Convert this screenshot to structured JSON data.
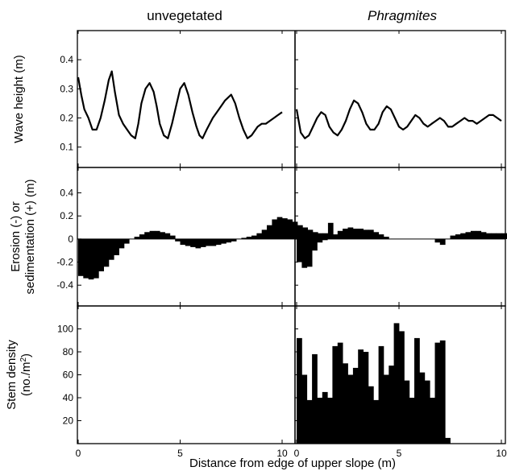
{
  "figure": {
    "col_titles": [
      "unvegetated",
      "Phragmites"
    ],
    "xlabel": "Distance from edge of upper slope (m)"
  },
  "chart_data": [
    {
      "type": "line",
      "panel": "wave-height",
      "ylabel": "Wave height (m)",
      "ylim": [
        0.03,
        0.5
      ],
      "yticks": [
        0.1,
        0.2,
        0.3,
        0.4
      ],
      "xlim": [
        0,
        10
      ],
      "xticks": [
        0,
        5,
        10
      ],
      "series": [
        {
          "column": "unvegetated",
          "x": [
            0,
            0.15,
            0.3,
            0.5,
            0.7,
            0.9,
            1.1,
            1.3,
            1.5,
            1.65,
            1.8,
            2.0,
            2.2,
            2.4,
            2.6,
            2.8,
            2.95,
            3.1,
            3.3,
            3.5,
            3.7,
            3.85,
            4.0,
            4.2,
            4.4,
            4.6,
            4.8,
            5.0,
            5.2,
            5.4,
            5.6,
            5.8,
            5.95,
            6.1,
            6.3,
            6.6,
            6.9,
            7.2,
            7.5,
            7.7,
            7.9,
            8.1,
            8.3,
            8.5,
            8.8,
            9.0,
            9.2,
            9.4,
            9.6,
            9.8,
            10.0
          ],
          "y": [
            0.34,
            0.28,
            0.23,
            0.2,
            0.16,
            0.16,
            0.2,
            0.26,
            0.33,
            0.36,
            0.29,
            0.21,
            0.18,
            0.16,
            0.14,
            0.13,
            0.18,
            0.25,
            0.3,
            0.32,
            0.29,
            0.24,
            0.18,
            0.14,
            0.13,
            0.18,
            0.24,
            0.3,
            0.32,
            0.28,
            0.22,
            0.17,
            0.14,
            0.13,
            0.16,
            0.2,
            0.23,
            0.26,
            0.28,
            0.25,
            0.2,
            0.16,
            0.13,
            0.14,
            0.17,
            0.18,
            0.18,
            0.19,
            0.2,
            0.21,
            0.22
          ]
        },
        {
          "column": "Phragmites",
          "x": [
            0,
            0.2,
            0.4,
            0.6,
            0.8,
            1.0,
            1.2,
            1.4,
            1.6,
            1.8,
            2.0,
            2.2,
            2.4,
            2.6,
            2.8,
            3.0,
            3.2,
            3.4,
            3.6,
            3.8,
            4.0,
            4.2,
            4.4,
            4.6,
            4.8,
            5.0,
            5.2,
            5.4,
            5.6,
            5.8,
            6.0,
            6.2,
            6.4,
            6.6,
            6.8,
            7.0,
            7.2,
            7.4,
            7.6,
            7.8,
            8.0,
            8.2,
            8.4,
            8.6,
            8.8,
            9.0,
            9.2,
            9.4,
            9.6,
            9.8,
            10.0
          ],
          "y": [
            0.23,
            0.15,
            0.13,
            0.14,
            0.17,
            0.2,
            0.22,
            0.21,
            0.17,
            0.15,
            0.14,
            0.16,
            0.19,
            0.23,
            0.26,
            0.25,
            0.22,
            0.18,
            0.16,
            0.16,
            0.18,
            0.22,
            0.24,
            0.23,
            0.2,
            0.17,
            0.16,
            0.17,
            0.19,
            0.21,
            0.2,
            0.18,
            0.17,
            0.18,
            0.19,
            0.2,
            0.19,
            0.17,
            0.17,
            0.18,
            0.19,
            0.2,
            0.19,
            0.19,
            0.18,
            0.19,
            0.2,
            0.21,
            0.21,
            0.2,
            0.19
          ]
        }
      ]
    },
    {
      "type": "bar",
      "panel": "erosion",
      "ylabel": [
        "Erosion (-) or",
        "sedimentation (+) (m)"
      ],
      "ylim": [
        -0.58,
        0.62
      ],
      "yticks": [
        -0.4,
        -0.2,
        0,
        0.2,
        0.4
      ],
      "xlim": [
        0,
        10
      ],
      "xticks": [
        0,
        5,
        10
      ],
      "series": [
        {
          "column": "unvegetated",
          "bin_width": 0.25,
          "values": [
            -0.32,
            -0.34,
            -0.35,
            -0.34,
            -0.28,
            -0.24,
            -0.18,
            -0.14,
            -0.08,
            -0.04,
            0.0,
            0.02,
            0.04,
            0.06,
            0.07,
            0.07,
            0.06,
            0.05,
            0.03,
            -0.02,
            -0.05,
            -0.06,
            -0.07,
            -0.08,
            -0.07,
            -0.06,
            -0.06,
            -0.05,
            -0.04,
            -0.03,
            -0.02,
            0.0,
            0.01,
            0.02,
            0.03,
            0.05,
            0.08,
            0.12,
            0.17,
            0.19,
            0.18,
            0.17,
            0.15,
            0.12,
            0.1,
            0.08,
            0.06,
            0.05,
            0.05,
            0.14
          ]
        },
        {
          "column": "Phragmites",
          "bin_width": 0.25,
          "values": [
            -0.2,
            -0.25,
            -0.24,
            -0.1,
            -0.03,
            -0.01,
            0.0,
            0.04,
            0.07,
            0.09,
            0.1,
            0.09,
            0.09,
            0.08,
            0.08,
            0.06,
            0.04,
            0.02,
            0.0,
            0.0,
            0.0,
            0.0,
            0.0,
            0.0,
            0.0,
            0.0,
            0.0,
            -0.03,
            -0.05,
            0.0,
            0.03,
            0.04,
            0.05,
            0.06,
            0.07,
            0.07,
            0.06,
            0.05,
            0.05,
            0.05,
            0.05,
            0.05,
            0.05,
            0.05,
            0.05,
            0.05
          ]
        }
      ]
    },
    {
      "type": "bar",
      "panel": "stem-density",
      "ylabel": [
        "Stem density",
        "(no./m",
        "2",
        ")"
      ],
      "ylim": [
        0,
        120
      ],
      "yticks": [
        20,
        40,
        60,
        80,
        100
      ],
      "xlim": [
        0,
        10
      ],
      "xticks": [
        0,
        5,
        10
      ],
      "series": [
        {
          "column": "unvegetated",
          "bin_width": 0.25,
          "values": []
        },
        {
          "column": "Phragmites",
          "bin_width": 0.25,
          "values": [
            92,
            60,
            38,
            78,
            40,
            45,
            40,
            85,
            88,
            70,
            60,
            66,
            82,
            80,
            50,
            38,
            85,
            60,
            68,
            105,
            98,
            55,
            40,
            92,
            62,
            55,
            40,
            88,
            90,
            5
          ]
        }
      ]
    }
  ]
}
